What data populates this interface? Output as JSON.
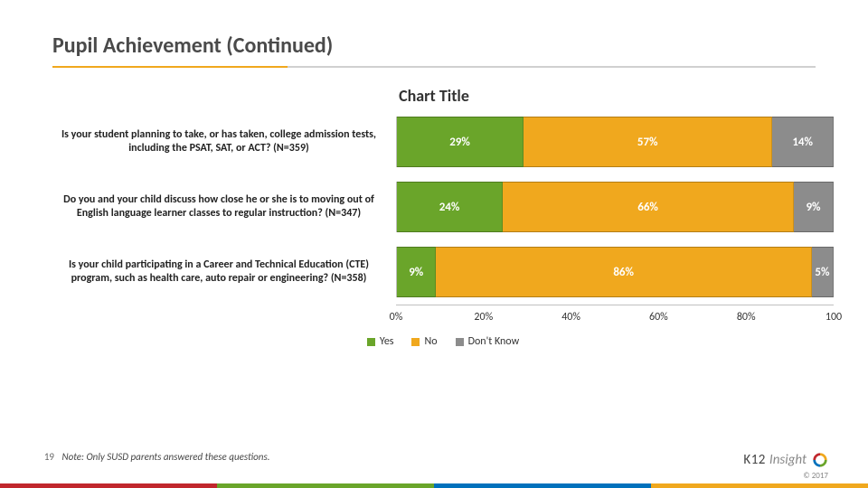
{
  "title": "Pupil Achievement (Continued)",
  "chart_title": "Chart Title",
  "colors": {
    "yes": "#6aa52a",
    "no": "#f0a81e",
    "dontknow": "#8c8c8c",
    "segment_text": "#ffffff",
    "axis": "#bfbfbf"
  },
  "chart": {
    "type": "stacked-bar-horizontal",
    "xlim": [
      0,
      100
    ],
    "xtick_step": 20,
    "ticks": [
      {
        "pos": 0,
        "label": "0%"
      },
      {
        "pos": 20,
        "label": "20%"
      },
      {
        "pos": 40,
        "label": "40%"
      },
      {
        "pos": 60,
        "label": "60%"
      },
      {
        "pos": 80,
        "label": "80%"
      },
      {
        "pos": 100,
        "label": "100"
      }
    ],
    "series": [
      "Yes",
      "No",
      "Don't Know"
    ],
    "rows": [
      {
        "label": "Is your student planning to take, or has taken, college admission tests, including the PSAT, SAT, or ACT? (N=359)",
        "values": [
          29,
          57,
          14
        ],
        "value_labels": [
          "29%",
          "57%",
          "14%"
        ]
      },
      {
        "label": "Do you and your child discuss how close he or she is to moving out of English language learner classes to regular instruction? (N=347)",
        "values": [
          24,
          66,
          9
        ],
        "value_labels": [
          "24%",
          "66%",
          "9%"
        ]
      },
      {
        "label": "Is your child participating in a Career and Technical Education (CTE) program, such as health care, auto repair or engineering? (N=358)",
        "values": [
          9,
          86,
          5
        ],
        "value_labels": [
          "9%",
          "86%",
          "5%"
        ]
      }
    ]
  },
  "legend": {
    "items": [
      {
        "label": "Yes",
        "color": "#6aa52a"
      },
      {
        "label": "No",
        "color": "#f0a81e"
      },
      {
        "label": "Don't Know",
        "color": "#8c8c8c"
      }
    ]
  },
  "page_number": "19",
  "footnote": "Note: Only SUSD parents answered these questions.",
  "brand": {
    "k": "K",
    "twelve": "12",
    "insight": "Insight"
  },
  "copyright": "© 2017",
  "footer_bar": [
    {
      "color": "#c1272d",
      "width": 25
    },
    {
      "color": "#6aa52a",
      "width": 25
    },
    {
      "color": "#0071bc",
      "width": 25
    },
    {
      "color": "#f0a81e",
      "width": 25
    }
  ]
}
